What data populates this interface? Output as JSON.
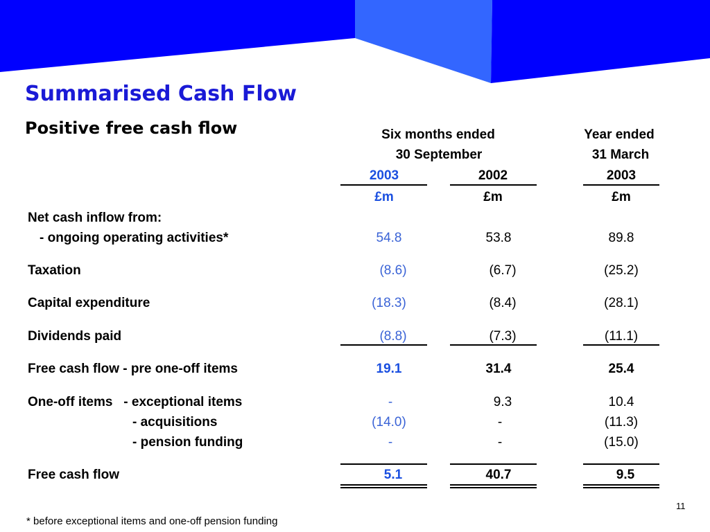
{
  "header": {
    "title": "Summarised Cash Flow",
    "subtitle": "Positive free cash flow"
  },
  "colors": {
    "banner": "#0000ff",
    "banner_light": "#3366ff",
    "title": "#1a1ad6",
    "current_period": "#3a63d6"
  },
  "table": {
    "group_headers": {
      "six_months_line1": "Six months ended",
      "six_months_line2": "30 September",
      "year_line1": "Year ended",
      "year_line2": "31 March"
    },
    "columns": [
      {
        "year": "2003",
        "unit": "£m"
      },
      {
        "year": "2002",
        "unit": "£m"
      },
      {
        "year": "2003",
        "unit": "£m"
      }
    ],
    "section_label": "Net cash inflow from:",
    "rows": {
      "ongoing": {
        "label": "- ongoing operating activities*",
        "values": [
          "54.8",
          "53.8",
          "89.8"
        ]
      },
      "taxation": {
        "label": "Taxation",
        "values": [
          "(8.6)",
          "(6.7)",
          "(25.2)"
        ]
      },
      "capex": {
        "label": "Capital expenditure",
        "values": [
          "(18.3)",
          "(8.4)",
          "(28.1)"
        ]
      },
      "dividends": {
        "label": "Dividends paid",
        "values": [
          "(8.8)",
          "(7.3)",
          "(11.1)"
        ]
      },
      "fcf_pre": {
        "label": "Free cash flow - pre one-off items",
        "values": [
          "19.1",
          "31.4",
          "25.4"
        ]
      },
      "exceptional": {
        "label": "One-off items   - exceptional items",
        "values": [
          "-",
          "9.3",
          "10.4"
        ]
      },
      "acquisitions": {
        "label": "- acquisitions",
        "values": [
          "(14.0)",
          "-",
          "(11.3)"
        ]
      },
      "pension": {
        "label": "- pension funding",
        "values": [
          "-",
          "-",
          "(15.0)"
        ]
      },
      "fcf": {
        "label": "Free cash flow",
        "values": [
          "5.1",
          "40.7",
          "9.5"
        ]
      }
    }
  },
  "footnote": "* before exceptional items and one-off pension funding",
  "page_number": "11"
}
